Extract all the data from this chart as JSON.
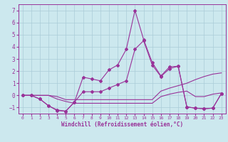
{
  "xlabel": "Windchill (Refroidissement éolien,°C)",
  "background_color": "#cce8ee",
  "grid_color": "#aaccd8",
  "line_color": "#993399",
  "xlim": [
    -0.5,
    23.5
  ],
  "ylim": [
    -1.5,
    7.5
  ],
  "yticks": [
    -1,
    0,
    1,
    2,
    3,
    4,
    5,
    6,
    7
  ],
  "xticks": [
    0,
    1,
    2,
    3,
    4,
    5,
    6,
    7,
    8,
    9,
    10,
    11,
    12,
    13,
    14,
    15,
    16,
    17,
    18,
    19,
    20,
    21,
    22,
    23
  ],
  "line1_x": [
    0,
    1,
    2,
    3,
    4,
    5,
    6,
    7,
    8,
    9,
    10,
    11,
    12,
    13,
    14,
    15,
    16,
    17,
    18,
    19,
    20,
    21,
    22,
    23
  ],
  "line1_y": [
    0,
    0,
    -0.3,
    -0.85,
    -1.2,
    -1.3,
    -0.55,
    1.5,
    1.35,
    1.2,
    2.1,
    2.5,
    3.8,
    7.0,
    4.6,
    2.7,
    1.6,
    2.35,
    2.4,
    -0.95,
    -1.05,
    -1.1,
    -1.05,
    0.15
  ],
  "line2_x": [
    0,
    1,
    2,
    3,
    4,
    5,
    6,
    7,
    8,
    9,
    10,
    11,
    12,
    13,
    14,
    15,
    16,
    17,
    18,
    19,
    20,
    21,
    22,
    23
  ],
  "line2_y": [
    0,
    0,
    -0.3,
    -0.85,
    -1.25,
    -1.3,
    -0.55,
    0.3,
    0.3,
    0.3,
    0.6,
    0.9,
    1.2,
    3.8,
    4.5,
    2.5,
    1.55,
    2.2,
    2.4,
    -0.95,
    -1.05,
    -1.1,
    -1.05,
    0.15
  ],
  "line3_x": [
    0,
    1,
    2,
    3,
    4,
    5,
    6,
    7,
    8,
    9,
    10,
    11,
    12,
    13,
    14,
    15,
    16,
    17,
    18,
    19,
    20,
    21,
    22,
    23
  ],
  "line3_y": [
    0,
    0,
    0,
    0,
    -0.1,
    -0.35,
    -0.35,
    -0.35,
    -0.35,
    -0.35,
    -0.35,
    -0.35,
    -0.35,
    -0.35,
    -0.35,
    -0.35,
    0.35,
    0.6,
    0.8,
    1.0,
    1.3,
    1.55,
    1.75,
    1.85
  ],
  "line4_x": [
    0,
    1,
    2,
    3,
    4,
    5,
    6,
    7,
    8,
    9,
    10,
    11,
    12,
    13,
    14,
    15,
    16,
    17,
    18,
    19,
    20,
    21,
    22,
    23
  ],
  "line4_y": [
    0,
    0,
    0,
    0,
    -0.3,
    -0.5,
    -0.65,
    -0.65,
    -0.65,
    -0.65,
    -0.65,
    -0.65,
    -0.65,
    -0.65,
    -0.65,
    -0.65,
    -0.1,
    0.1,
    0.25,
    0.35,
    -0.1,
    -0.1,
    0.1,
    0.2
  ]
}
